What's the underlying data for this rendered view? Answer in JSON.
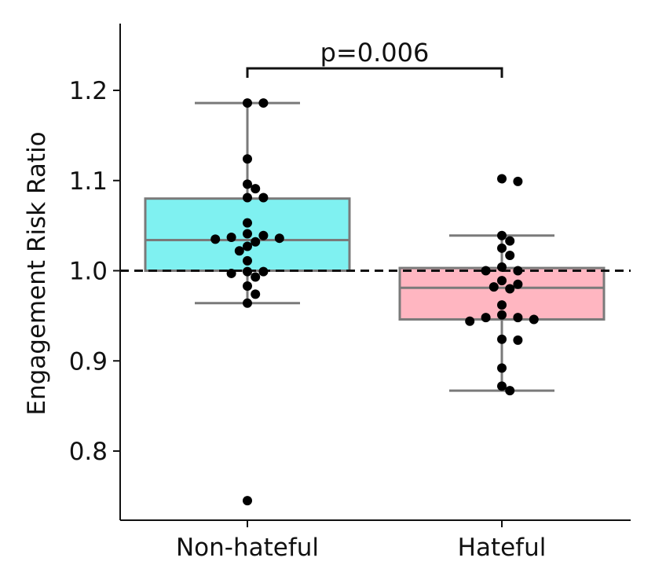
{
  "chart_data": {
    "type": "box",
    "ylabel": "Engagement Risk Ratio",
    "xlabel": "",
    "ylim": [
      0.74,
      1.275
    ],
    "yticks": [
      "0.8",
      "0.9",
      "1.0",
      "1.1",
      "1.2"
    ],
    "categories": [
      "Non-hateful",
      "Hateful"
    ],
    "reference_line": 1.0,
    "annotation": "p=0.006",
    "colors": {
      "box_0": "#7ff1f1",
      "box_1": "#ffb6c1",
      "box_edge": "#7a7a7a",
      "point": "#000000"
    },
    "boxes": [
      {
        "category": "Non-hateful",
        "q1": 1.0,
        "median": 1.034,
        "q3": 1.08,
        "whisker_low": 0.964,
        "whisker_high": 1.186,
        "points": [
          1.186,
          1.186,
          1.124,
          1.096,
          1.091,
          1.081,
          1.081,
          1.053,
          1.041,
          1.039,
          1.037,
          1.036,
          1.035,
          1.032,
          1.027,
          1.022,
          1.011,
          0.999,
          0.999,
          0.997,
          0.993,
          0.983,
          0.974,
          0.964,
          0.745
        ]
      },
      {
        "category": "Hateful",
        "q1": 0.946,
        "median": 0.981,
        "q3": 1.003,
        "whisker_low": 0.867,
        "whisker_high": 1.039,
        "points": [
          1.102,
          1.099,
          1.039,
          1.033,
          1.025,
          1.017,
          1.004,
          1.0,
          1.0,
          0.989,
          0.985,
          0.982,
          0.98,
          0.962,
          0.951,
          0.948,
          0.948,
          0.946,
          0.944,
          0.924,
          0.923,
          0.892,
          0.872,
          0.867
        ]
      }
    ]
  }
}
